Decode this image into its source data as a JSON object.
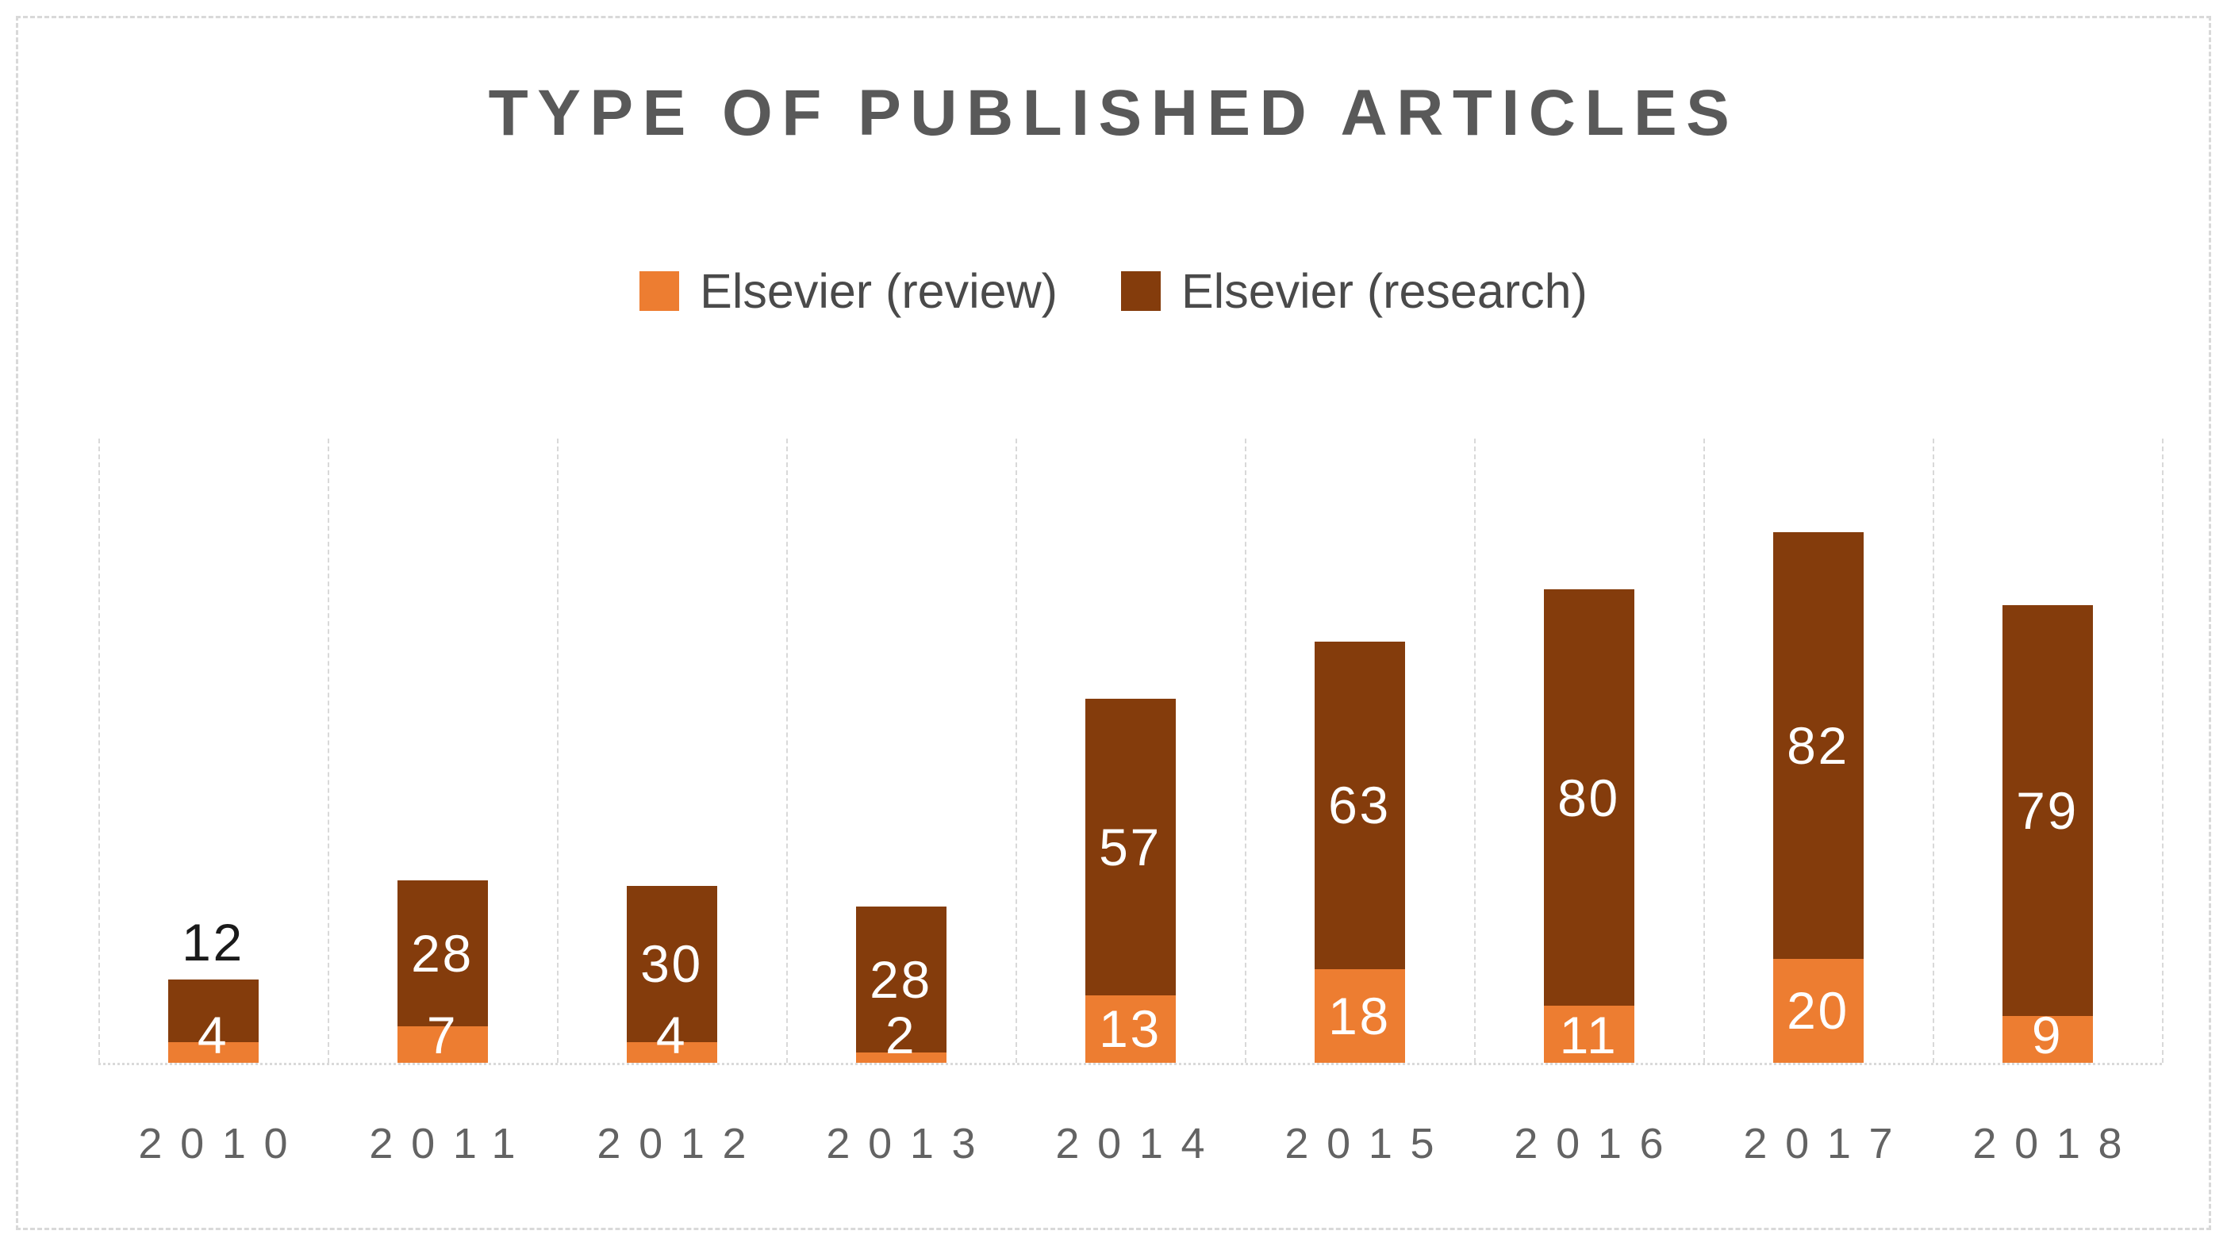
{
  "chart_data": {
    "type": "bar",
    "stacked": true,
    "title": "TYPE OF PUBLISHED ARTICLES",
    "categories": [
      "2010",
      "2011",
      "2012",
      "2013",
      "2014",
      "2015",
      "2016",
      "2017",
      "2018"
    ],
    "series": [
      {
        "name": "Elsevier (review)",
        "color": "#ED7D31",
        "values": [
          4,
          7,
          4,
          2,
          13,
          18,
          11,
          20,
          9
        ]
      },
      {
        "name": "Elsevier (research)",
        "color": "#843C0C",
        "values": [
          12,
          28,
          30,
          28,
          57,
          63,
          80,
          82,
          79
        ]
      }
    ],
    "data_labels_shown": true,
    "xlabel": "",
    "ylabel": "",
    "ylim": [
      0,
      120
    ],
    "y_axis_visible": false,
    "legend_position": "top",
    "grid": "vertical-only"
  },
  "style_colors": {
    "gridline": "#d9d9d9",
    "chart_border": "#d9d9d9",
    "title_text": "#595959",
    "axis_text": "#636363",
    "legend_text": "#4a4a4a",
    "label_inside": "#ffffff",
    "label_outside": "#1a1a1a"
  }
}
